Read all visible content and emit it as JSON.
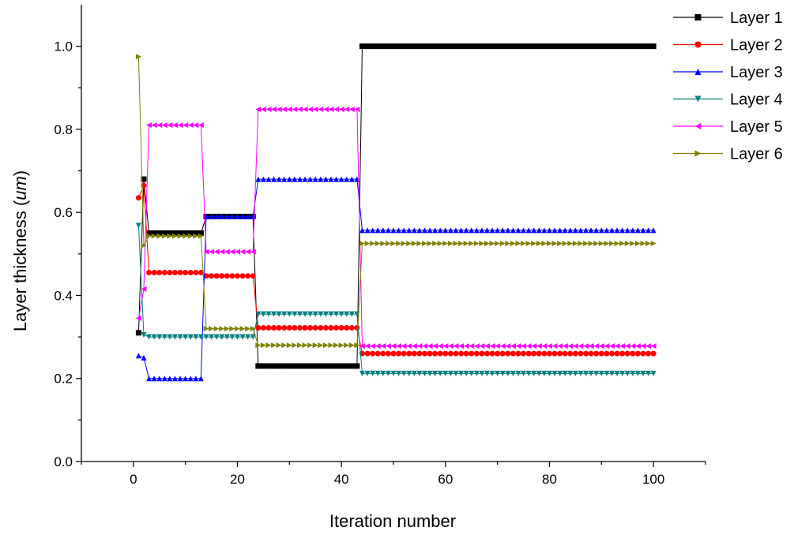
{
  "chart_data": {
    "type": "line",
    "xlabel": "Iteration number",
    "ylabel_prefix": "Layer thickness (",
    "ylabel_unit": "um",
    "ylabel_suffix": ")",
    "xlim": [
      -10,
      110
    ],
    "ylim": [
      0.0,
      1.1
    ],
    "xticks": [
      0,
      20,
      40,
      60,
      80,
      100
    ],
    "yticks": [
      "0.0",
      "0.2",
      "0.4",
      "0.6",
      "0.8",
      "1.0"
    ],
    "grid": false,
    "legend_position": "top-right",
    "series": [
      {
        "name": "Layer 1",
        "color": "#000000",
        "marker": "square",
        "segments": [
          [
            1,
            1,
            0.31
          ],
          [
            2,
            2,
            0.68
          ],
          [
            3,
            13,
            0.55
          ],
          [
            14,
            23,
            0.59
          ],
          [
            24,
            43,
            0.23
          ],
          [
            44,
            100,
            1.0
          ]
        ]
      },
      {
        "name": "Layer 2",
        "color": "#ff0000",
        "marker": "circle",
        "segments": [
          [
            1,
            1,
            0.635
          ],
          [
            2,
            2,
            0.665
          ],
          [
            3,
            13,
            0.455
          ],
          [
            14,
            23,
            0.447
          ],
          [
            24,
            43,
            0.322
          ],
          [
            44,
            100,
            0.26
          ]
        ]
      },
      {
        "name": "Layer 3",
        "color": "#0000ff",
        "marker": "triangle-up",
        "segments": [
          [
            1,
            1,
            0.255
          ],
          [
            2,
            2,
            0.25
          ],
          [
            3,
            13,
            0.2
          ],
          [
            14,
            23,
            0.59
          ],
          [
            24,
            43,
            0.68
          ],
          [
            44,
            100,
            0.557
          ]
        ]
      },
      {
        "name": "Layer 4",
        "color": "#008080",
        "marker": "triangle-down",
        "segments": [
          [
            1,
            1,
            0.568
          ],
          [
            2,
            2,
            0.305
          ],
          [
            3,
            13,
            0.3
          ],
          [
            14,
            23,
            0.3
          ],
          [
            24,
            43,
            0.355
          ],
          [
            44,
            100,
            0.212
          ]
        ]
      },
      {
        "name": "Layer 5",
        "color": "#ff00ff",
        "marker": "triangle-left",
        "segments": [
          [
            1,
            1,
            0.345
          ],
          [
            2,
            2,
            0.415
          ],
          [
            3,
            13,
            0.81
          ],
          [
            14,
            23,
            0.505
          ],
          [
            24,
            43,
            0.848
          ],
          [
            44,
            100,
            0.278
          ]
        ]
      },
      {
        "name": "Layer 6",
        "color": "#808000",
        "marker": "triangle-right",
        "segments": [
          [
            1,
            1,
            0.975
          ],
          [
            2,
            2,
            0.52
          ],
          [
            3,
            13,
            0.543
          ],
          [
            14,
            23,
            0.32
          ],
          [
            24,
            43,
            0.28
          ],
          [
            44,
            100,
            0.525
          ]
        ]
      }
    ]
  }
}
